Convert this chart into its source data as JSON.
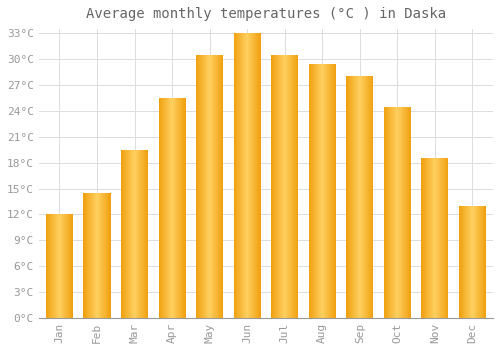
{
  "title": "Average monthly temperatures (°C ) in Daska",
  "months": [
    "Jan",
    "Feb",
    "Mar",
    "Apr",
    "May",
    "Jun",
    "Jul",
    "Aug",
    "Sep",
    "Oct",
    "Nov",
    "Dec"
  ],
  "values": [
    12,
    14.5,
    19.5,
    25.5,
    30.5,
    33,
    30.5,
    29.5,
    28,
    24.5,
    18.5,
    13
  ],
  "bar_color_left": "#F0A010",
  "bar_color_center": "#FFD060",
  "bar_color_right": "#F0A010",
  "background_color": "#FFFFFF",
  "grid_color": "#DDDDDD",
  "text_color": "#999999",
  "title_color": "#666666",
  "ytick_step": 3,
  "ymin": 0,
  "ymax": 33,
  "title_fontsize": 10,
  "tick_fontsize": 8,
  "font_family": "monospace"
}
